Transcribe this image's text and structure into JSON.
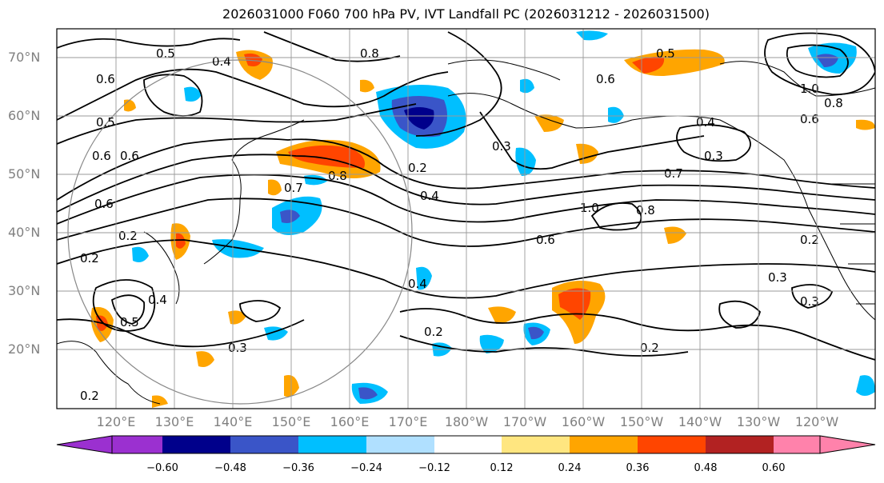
{
  "title": "2026031000 F060 700 hPa PV, IVT Landfall PC (2026031212 - 2026031500)",
  "lat_labels": [
    "70°N",
    "60°N",
    "50°N",
    "40°N",
    "30°N",
    "20°N"
  ],
  "lon_labels": [
    "120°E",
    "130°E",
    "140°E",
    "150°E",
    "160°E",
    "170°E",
    "180°W",
    "170°W",
    "160°W",
    "150°W",
    "140°W",
    "130°W",
    "120°W"
  ],
  "colorbar": {
    "ticks": [
      "−0.60",
      "−0.48",
      "−0.36",
      "−0.24",
      "−0.12",
      "0.12",
      "0.24",
      "0.36",
      "0.48",
      "0.60"
    ],
    "colors": [
      "#9b30d0",
      "#00008b",
      "#3a55c8",
      "#00bfff",
      "#b0e0ff",
      "#ffffff",
      "#ffe680",
      "#ffa500",
      "#ff4500",
      "#b22222",
      "#ff82ab"
    ]
  },
  "contour_labels": [
    "0.5",
    "0.4",
    "0.6",
    "0.8",
    "0.5",
    "0.6",
    "0.7",
    "1.0",
    "0.8",
    "0.6",
    "0.4",
    "0.3",
    "0.5",
    "0.6",
    "0.8",
    "0.2",
    "0.4",
    "1.0",
    "0.8",
    "0.7",
    "0.6",
    "0.2",
    "0.2",
    "0.3",
    "0.2",
    "0.3",
    "0.2",
    "0.3",
    "0.6",
    "0.2",
    "0.4",
    "0.2",
    "0.3",
    "0.4",
    "0.6",
    "0.5"
  ]
}
